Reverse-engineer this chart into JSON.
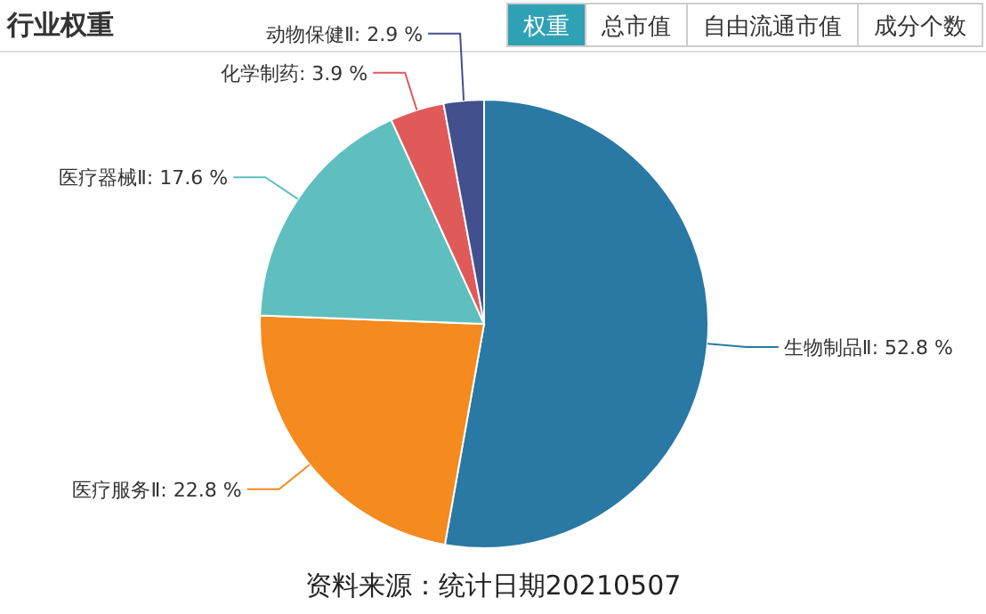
{
  "chart_data": {
    "type": "pie",
    "title": "行业权重",
    "categories": [
      "生物制品Ⅱ",
      "医疗服务Ⅱ",
      "医疗器械Ⅱ",
      "化学制药",
      "动物保健Ⅱ"
    ],
    "values": [
      52.8,
      22.8,
      17.6,
      3.9,
      2.9
    ],
    "colors": [
      "#2a78a4",
      "#f58a1f",
      "#5fbfbf",
      "#e05a5a",
      "#43508e"
    ],
    "value_labels": [
      "52.8 %",
      "22.8 %",
      "17.6 %",
      "3.9 %",
      "2.9 %"
    ],
    "annotations": [
      "权重",
      "总市值",
      "自由流通市值",
      "成分个数",
      "资料来源：统计日期20210507"
    ]
  }
}
